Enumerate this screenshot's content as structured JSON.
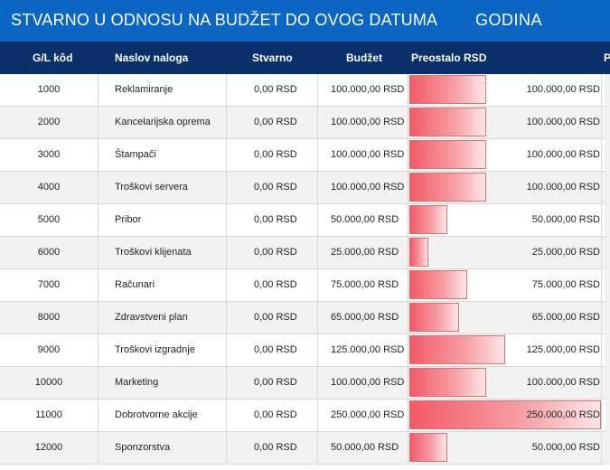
{
  "header": {
    "title": "STVARNO U ODNOSU NA BUDŽET DO OVOG DATUMA",
    "period": "GODINA"
  },
  "columns": [
    "G/L kôd",
    "Naslov naloga",
    "Stvarno",
    "Budžet",
    "Preostalo RSD",
    "P"
  ],
  "colors": {
    "title_bg": "#0a66c2",
    "header_bg": "#0b2f6b",
    "bar": "#f25a66"
  },
  "bar_max": 250000,
  "rows": [
    {
      "code": "1000",
      "name": "Reklamiranje",
      "actual": "0,00 RSD",
      "budget": "100.000,00 RSD",
      "remaining": "100.000,00 RSD",
      "remaining_value": 100000
    },
    {
      "code": "2000",
      "name": "Kancelarijska oprema",
      "actual": "0,00 RSD",
      "budget": "100.000,00 RSD",
      "remaining": "100.000,00 RSD",
      "remaining_value": 100000
    },
    {
      "code": "3000",
      "name": "Štampači",
      "actual": "0,00 RSD",
      "budget": "100.000,00 RSD",
      "remaining": "100.000,00 RSD",
      "remaining_value": 100000
    },
    {
      "code": "4000",
      "name": "Troškovi servera",
      "actual": "0,00 RSD",
      "budget": "100.000,00 RSD",
      "remaining": "100.000,00 RSD",
      "remaining_value": 100000
    },
    {
      "code": "5000",
      "name": "Pribor",
      "actual": "0,00 RSD",
      "budget": "50.000,00 RSD",
      "remaining": "50.000,00 RSD",
      "remaining_value": 50000
    },
    {
      "code": "6000",
      "name": "Troškovi klijenata",
      "actual": "0,00 RSD",
      "budget": "25.000,00 RSD",
      "remaining": "25.000,00 RSD",
      "remaining_value": 25000
    },
    {
      "code": "7000",
      "name": "Računari",
      "actual": "0,00 RSD",
      "budget": "75.000,00 RSD",
      "remaining": "75.000,00 RSD",
      "remaining_value": 75000
    },
    {
      "code": "8000",
      "name": "Zdravstveni plan",
      "actual": "0,00 RSD",
      "budget": "65.000,00 RSD",
      "remaining": "65.000,00 RSD",
      "remaining_value": 65000
    },
    {
      "code": "9000",
      "name": "Troškovi izgradnje",
      "actual": "0,00 RSD",
      "budget": "125.000,00 RSD",
      "remaining": "125.000,00 RSD",
      "remaining_value": 125000
    },
    {
      "code": "10000",
      "name": "Marketing",
      "actual": "0,00 RSD",
      "budget": "100.000,00 RSD",
      "remaining": "100.000,00 RSD",
      "remaining_value": 100000
    },
    {
      "code": "11000",
      "name": "Dobrotvorne akcije",
      "actual": "0,00 RSD",
      "budget": "250.000,00 RSD",
      "remaining": "250.000,00 RSD",
      "remaining_value": 250000
    },
    {
      "code": "12000",
      "name": "Sponzorstva",
      "actual": "0,00 RSD",
      "budget": "50.000,00 RSD",
      "remaining": "50.000,00 RSD",
      "remaining_value": 50000
    }
  ]
}
